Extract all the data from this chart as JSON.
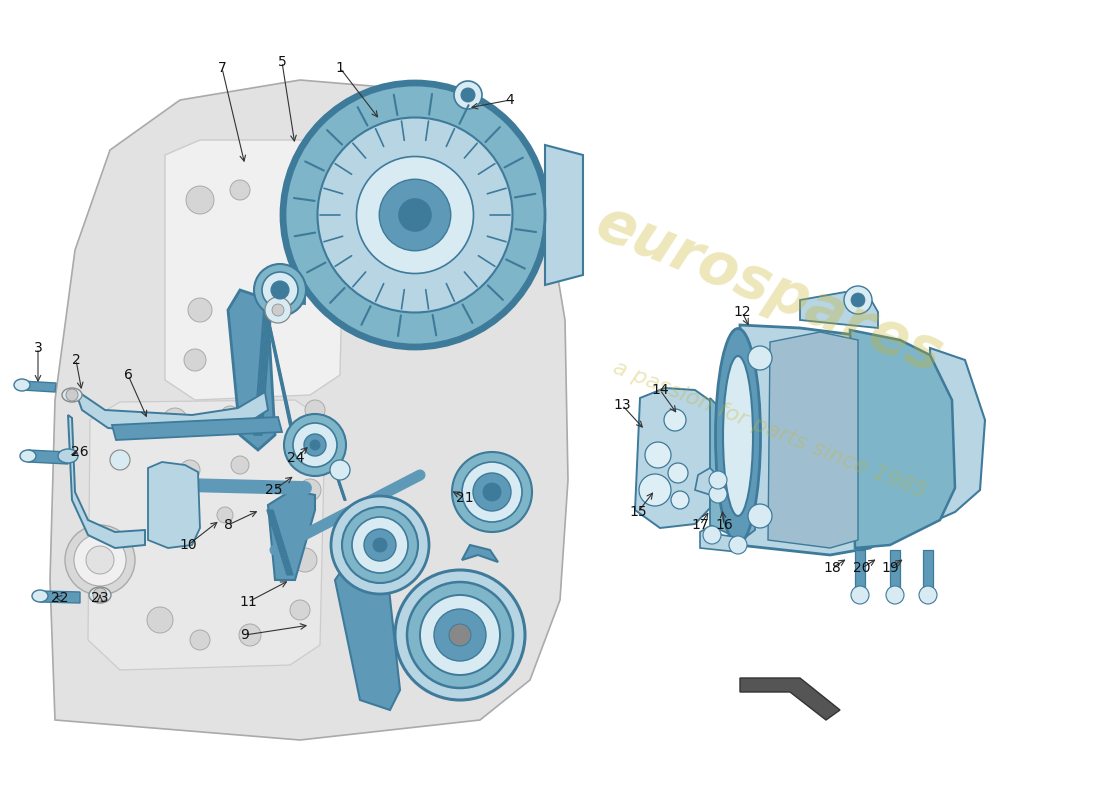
{
  "bg": "#ffffff",
  "blue": "#7eb5c8",
  "blue_dark": "#3e7a9a",
  "blue_mid": "#5e9ab8",
  "blue_light": "#b8d5e4",
  "blue_pale": "#d8eaf2",
  "gray_eng": "#e2e2e2",
  "gray_dark": "#aaaaaa",
  "gray_med": "#cccccc",
  "gray_light": "#f0f0f0",
  "wm_color": "#c8b42a",
  "wm_alpha": 0.32,
  "lbl_color": "#111111",
  "lbl_fs": 10,
  "arr_color": "#333333",
  "arr_lw": 0.8
}
